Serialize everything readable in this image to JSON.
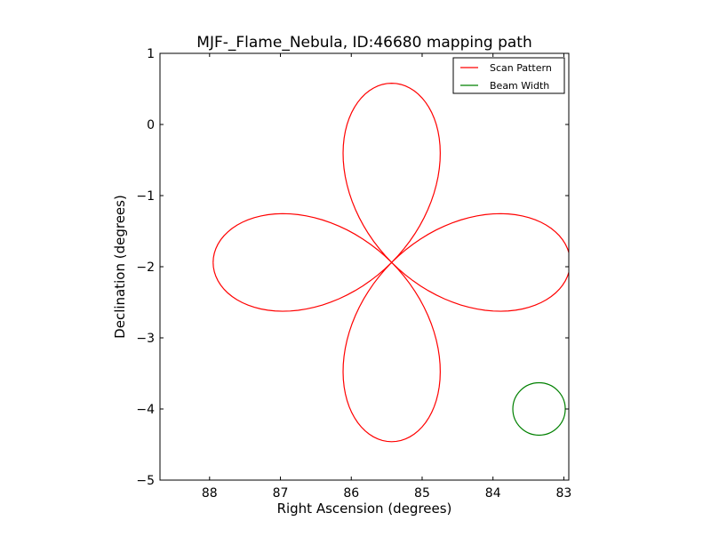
{
  "chart_data": {
    "type": "line",
    "title": "MJF-_Flame_Nebula, ID:46680 mapping path",
    "xlabel": "Right Ascension (degrees)",
    "ylabel": "Declination (degrees)",
    "xlim": [
      88.7,
      82.93
    ],
    "ylim": [
      -5,
      1
    ],
    "xticks": [
      88,
      87,
      86,
      85,
      84,
      83
    ],
    "yticks": [
      1,
      0,
      -1,
      -2,
      -3,
      -4,
      -5
    ],
    "xtick_labels": [
      "88",
      "87",
      "86",
      "85",
      "84",
      "83"
    ],
    "ytick_labels": [
      "1",
      "0",
      "−1",
      "−2",
      "−3",
      "−4",
      "−5"
    ],
    "grid": false,
    "legend": {
      "position": "top-right",
      "entries": [
        "Scan Pattern",
        "Beam Width"
      ]
    },
    "series": [
      {
        "name": "Scan Pattern",
        "color": "#ff0000",
        "center": {
          "ra": 85.43,
          "dec": -1.94
        },
        "petal_radius": 2.52,
        "petals": 4
      },
      {
        "name": "Beam Width",
        "color": "#008000",
        "center": {
          "ra": 83.35,
          "dec": -4.0
        },
        "radius": 0.37
      }
    ]
  }
}
